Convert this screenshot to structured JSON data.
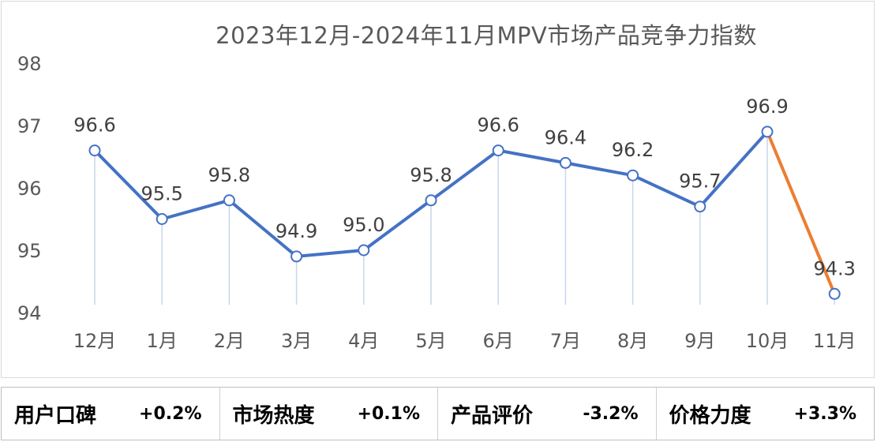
{
  "chart_data": {
    "type": "line",
    "title": "2023年12月-2024年11月MPV市场产品竞争力指数",
    "categories": [
      "12月",
      "1月",
      "2月",
      "3月",
      "4月",
      "5月",
      "6月",
      "7月",
      "8月",
      "9月",
      "10月",
      "11月"
    ],
    "values": [
      96.6,
      95.5,
      95.8,
      94.9,
      95.0,
      95.8,
      96.6,
      96.4,
      96.2,
      95.7,
      96.9,
      94.3
    ],
    "data_labels": [
      "96.6",
      "95.5",
      "95.8",
      "94.9",
      "95.0",
      "95.8",
      "96.6",
      "96.4",
      "96.2",
      "95.7",
      "96.9",
      "94.3"
    ],
    "ylim": [
      94,
      98
    ],
    "yticks": [
      "94",
      "95",
      "96",
      "97",
      "98"
    ],
    "grid": false,
    "line_color": "#4472c4",
    "last_segment_color": "#ed7d31",
    "drop_line_color": "#c9d6ea"
  },
  "summary": [
    {
      "name": "用户口碑",
      "value": "+0.2%"
    },
    {
      "name": "市场热度",
      "value": "+0.1%"
    },
    {
      "name": "产品评价",
      "value": "-3.2%"
    },
    {
      "name": "价格力度",
      "value": "+3.3%"
    }
  ]
}
